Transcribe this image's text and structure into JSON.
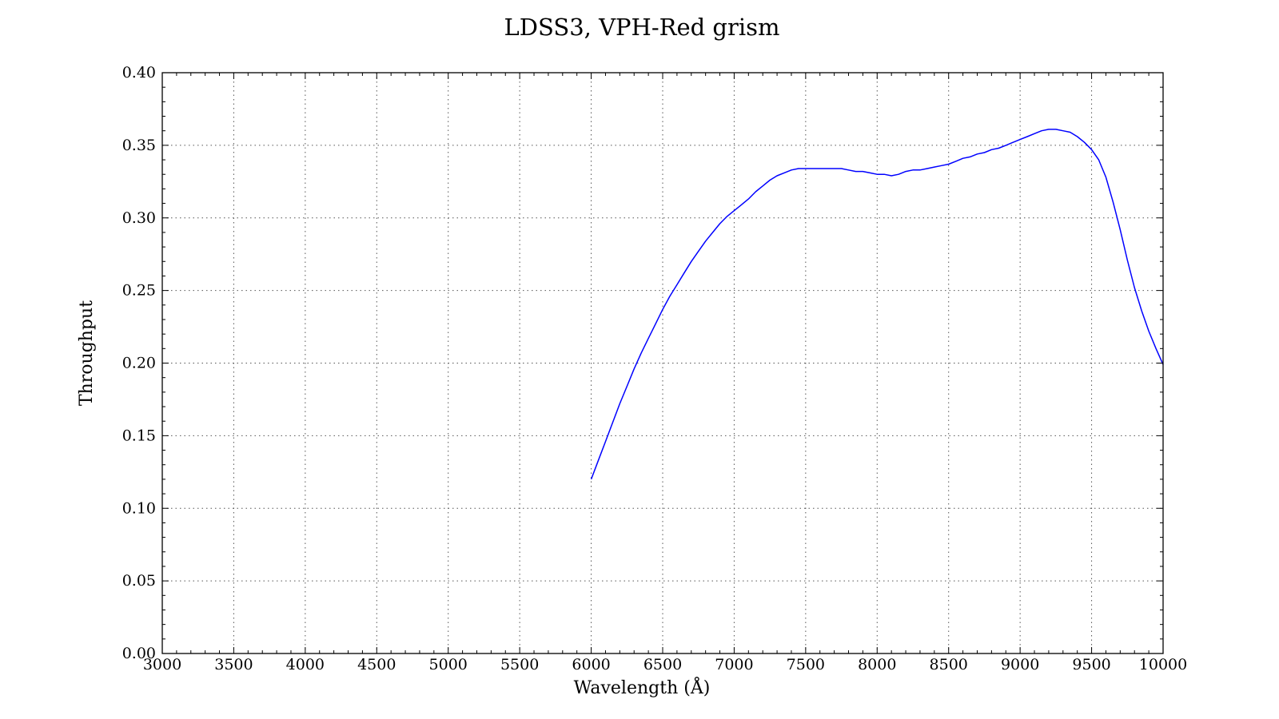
{
  "chart_data": {
    "type": "line",
    "title": "LDSS3, VPH-Red grism",
    "xlabel": "Wavelength (Å)",
    "ylabel": "Throughput",
    "xlim": [
      3000,
      10000
    ],
    "ylim": [
      0.0,
      0.4
    ],
    "x_ticks": [
      "3000",
      "3500",
      "4000",
      "4500",
      "5000",
      "5500",
      "6000",
      "6500",
      "7000",
      "7500",
      "8000",
      "8500",
      "9000",
      "9500",
      "10000"
    ],
    "y_ticks": [
      "0.00",
      "0.05",
      "0.10",
      "0.15",
      "0.20",
      "0.25",
      "0.30",
      "0.35",
      "0.40"
    ],
    "grid": true,
    "series": [
      {
        "color": "#0000ff",
        "x": [
          6000,
          6050,
          6100,
          6150,
          6200,
          6250,
          6300,
          6350,
          6400,
          6450,
          6500,
          6550,
          6600,
          6650,
          6700,
          6750,
          6800,
          6850,
          6900,
          6950,
          7000,
          7050,
          7100,
          7150,
          7200,
          7250,
          7300,
          7350,
          7400,
          7450,
          7500,
          7550,
          7600,
          7650,
          7700,
          7750,
          7800,
          7850,
          7900,
          7950,
          8000,
          8050,
          8100,
          8150,
          8200,
          8250,
          8300,
          8350,
          8400,
          8450,
          8500,
          8550,
          8600,
          8650,
          8700,
          8750,
          8800,
          8850,
          8900,
          8950,
          9000,
          9050,
          9100,
          9150,
          9200,
          9250,
          9300,
          9350,
          9400,
          9450,
          9500,
          9550,
          9600,
          9650,
          9700,
          9750,
          9800,
          9850,
          9900,
          9950,
          10000
        ],
        "y": [
          0.12,
          0.133,
          0.146,
          0.159,
          0.172,
          0.184,
          0.196,
          0.207,
          0.217,
          0.227,
          0.237,
          0.246,
          0.254,
          0.262,
          0.27,
          0.277,
          0.284,
          0.29,
          0.296,
          0.301,
          0.305,
          0.309,
          0.313,
          0.318,
          0.322,
          0.326,
          0.329,
          0.331,
          0.333,
          0.334,
          0.334,
          0.334,
          0.334,
          0.334,
          0.334,
          0.334,
          0.333,
          0.332,
          0.332,
          0.331,
          0.33,
          0.33,
          0.329,
          0.33,
          0.332,
          0.333,
          0.333,
          0.334,
          0.335,
          0.336,
          0.337,
          0.339,
          0.341,
          0.342,
          0.344,
          0.345,
          0.347,
          0.348,
          0.35,
          0.352,
          0.354,
          0.356,
          0.358,
          0.36,
          0.361,
          0.361,
          0.36,
          0.359,
          0.356,
          0.352,
          0.347,
          0.34,
          0.328,
          0.311,
          0.292,
          0.271,
          0.252,
          0.236,
          0.222,
          0.21,
          0.199
        ]
      }
    ]
  }
}
